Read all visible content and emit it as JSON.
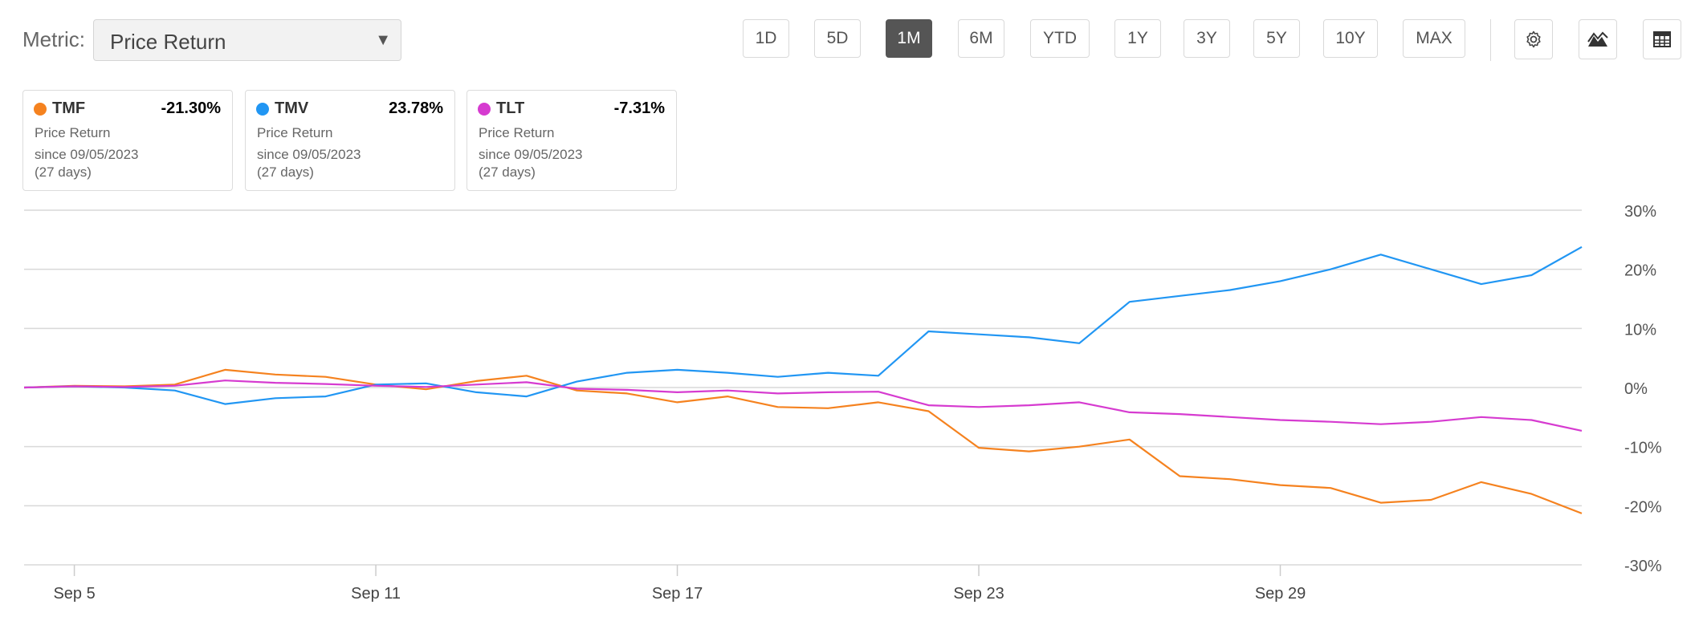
{
  "toolbar": {
    "metric_label": "Metric:",
    "metric_value": "Price Return",
    "ranges": [
      "1D",
      "5D",
      "1M",
      "6M",
      "YTD",
      "1Y",
      "3Y",
      "5Y",
      "10Y",
      "MAX"
    ],
    "active_range": "1M",
    "icons": [
      "gear-icon",
      "mountain-chart-icon",
      "table-icon"
    ]
  },
  "cards": [
    {
      "ticker": "TMF",
      "change": "-21.30%",
      "metric": "Price Return",
      "since": "since 09/05/2023",
      "days": "(27 days)",
      "color": "#f5821f"
    },
    {
      "ticker": "TMV",
      "change": "23.78%",
      "metric": "Price Return",
      "since": "since 09/05/2023",
      "days": "(27 days)",
      "color": "#2196f3"
    },
    {
      "ticker": "TLT",
      "change": "-7.31%",
      "metric": "Price Return",
      "since": "since 09/05/2023",
      "days": "(27 days)",
      "color": "#d63bd0"
    }
  ],
  "chart_data": {
    "type": "line",
    "x_start": "2023-09-04",
    "x_end": "2023-10-05",
    "xticks": [
      {
        "date": "2023-09-05",
        "label": "Sep 5"
      },
      {
        "date": "2023-09-11",
        "label": "Sep 11"
      },
      {
        "date": "2023-09-17",
        "label": "Sep 17"
      },
      {
        "date": "2023-09-23",
        "label": "Sep 23"
      },
      {
        "date": "2023-09-29",
        "label": "Sep 29"
      }
    ],
    "ylim": [
      -30,
      30
    ],
    "yticks": [
      30,
      20,
      10,
      0,
      -10,
      -20,
      -30
    ],
    "ytick_labels": [
      "30%",
      "20%",
      "10%",
      "0%",
      "-10%",
      "-20%",
      "-30%"
    ],
    "grid": true,
    "series": [
      {
        "name": "TMF",
        "color": "#f5821f",
        "points": [
          [
            "2023-09-04",
            0
          ],
          [
            "2023-09-05",
            0.3
          ],
          [
            "2023-09-06",
            0.2
          ],
          [
            "2023-09-07",
            0.5
          ],
          [
            "2023-09-08",
            3.0
          ],
          [
            "2023-09-09",
            2.2
          ],
          [
            "2023-09-10",
            1.8
          ],
          [
            "2023-09-11",
            0.5
          ],
          [
            "2023-09-12",
            -0.3
          ],
          [
            "2023-09-13",
            1.1
          ],
          [
            "2023-09-14",
            2.0
          ],
          [
            "2023-09-15",
            -0.5
          ],
          [
            "2023-09-16",
            -1.0
          ],
          [
            "2023-09-17",
            -2.5
          ],
          [
            "2023-09-18",
            -1.5
          ],
          [
            "2023-09-19",
            -3.3
          ],
          [
            "2023-09-20",
            -3.5
          ],
          [
            "2023-09-21",
            -2.5
          ],
          [
            "2023-09-22",
            -4.0
          ],
          [
            "2023-09-23",
            -10.2
          ],
          [
            "2023-09-24",
            -10.8
          ],
          [
            "2023-09-25",
            -10.0
          ],
          [
            "2023-09-26",
            -8.8
          ],
          [
            "2023-09-27",
            -15.0
          ],
          [
            "2023-09-28",
            -15.5
          ],
          [
            "2023-09-29",
            -16.5
          ],
          [
            "2023-09-30",
            -17.0
          ],
          [
            "2023-10-01",
            -19.5
          ],
          [
            "2023-10-02",
            -19.0
          ],
          [
            "2023-10-03",
            -16.0
          ],
          [
            "2023-10-04",
            -18.0
          ],
          [
            "2023-10-05",
            -21.3
          ]
        ]
      },
      {
        "name": "TMV",
        "color": "#2196f3",
        "points": [
          [
            "2023-09-04",
            0
          ],
          [
            "2023-09-05",
            0.2
          ],
          [
            "2023-09-06",
            0.0
          ],
          [
            "2023-09-07",
            -0.5
          ],
          [
            "2023-09-08",
            -2.8
          ],
          [
            "2023-09-09",
            -1.8
          ],
          [
            "2023-09-10",
            -1.5
          ],
          [
            "2023-09-11",
            0.5
          ],
          [
            "2023-09-12",
            0.7
          ],
          [
            "2023-09-13",
            -0.8
          ],
          [
            "2023-09-14",
            -1.5
          ],
          [
            "2023-09-15",
            1.0
          ],
          [
            "2023-09-16",
            2.5
          ],
          [
            "2023-09-17",
            3.0
          ],
          [
            "2023-09-18",
            2.5
          ],
          [
            "2023-09-19",
            1.8
          ],
          [
            "2023-09-20",
            2.5
          ],
          [
            "2023-09-21",
            2.0
          ],
          [
            "2023-09-22",
            9.5
          ],
          [
            "2023-09-23",
            9.0
          ],
          [
            "2023-09-24",
            8.5
          ],
          [
            "2023-09-25",
            7.5
          ],
          [
            "2023-09-26",
            14.5
          ],
          [
            "2023-09-27",
            15.5
          ],
          [
            "2023-09-28",
            16.5
          ],
          [
            "2023-09-29",
            18.0
          ],
          [
            "2023-09-30",
            20.0
          ],
          [
            "2023-10-01",
            22.5
          ],
          [
            "2023-10-02",
            20.0
          ],
          [
            "2023-10-03",
            17.5
          ],
          [
            "2023-10-04",
            19.0
          ],
          [
            "2023-10-05",
            23.78
          ]
        ]
      },
      {
        "name": "TLT",
        "color": "#d63bd0",
        "points": [
          [
            "2023-09-04",
            0
          ],
          [
            "2023-09-05",
            0.2
          ],
          [
            "2023-09-06",
            0.1
          ],
          [
            "2023-09-07",
            0.3
          ],
          [
            "2023-09-08",
            1.2
          ],
          [
            "2023-09-09",
            0.8
          ],
          [
            "2023-09-10",
            0.6
          ],
          [
            "2023-09-11",
            0.3
          ],
          [
            "2023-09-12",
            0.1
          ],
          [
            "2023-09-13",
            0.5
          ],
          [
            "2023-09-14",
            0.9
          ],
          [
            "2023-09-15",
            -0.2
          ],
          [
            "2023-09-16",
            -0.4
          ],
          [
            "2023-09-17",
            -0.8
          ],
          [
            "2023-09-18",
            -0.5
          ],
          [
            "2023-09-19",
            -1.0
          ],
          [
            "2023-09-20",
            -0.8
          ],
          [
            "2023-09-21",
            -0.7
          ],
          [
            "2023-09-22",
            -3.0
          ],
          [
            "2023-09-23",
            -3.3
          ],
          [
            "2023-09-24",
            -3.0
          ],
          [
            "2023-09-25",
            -2.5
          ],
          [
            "2023-09-26",
            -4.2
          ],
          [
            "2023-09-27",
            -4.5
          ],
          [
            "2023-09-28",
            -5.0
          ],
          [
            "2023-09-29",
            -5.5
          ],
          [
            "2023-09-30",
            -5.8
          ],
          [
            "2023-10-01",
            -6.2
          ],
          [
            "2023-10-02",
            -5.8
          ],
          [
            "2023-10-03",
            -5.0
          ],
          [
            "2023-10-04",
            -5.5
          ],
          [
            "2023-10-05",
            -7.31
          ]
        ]
      }
    ]
  }
}
